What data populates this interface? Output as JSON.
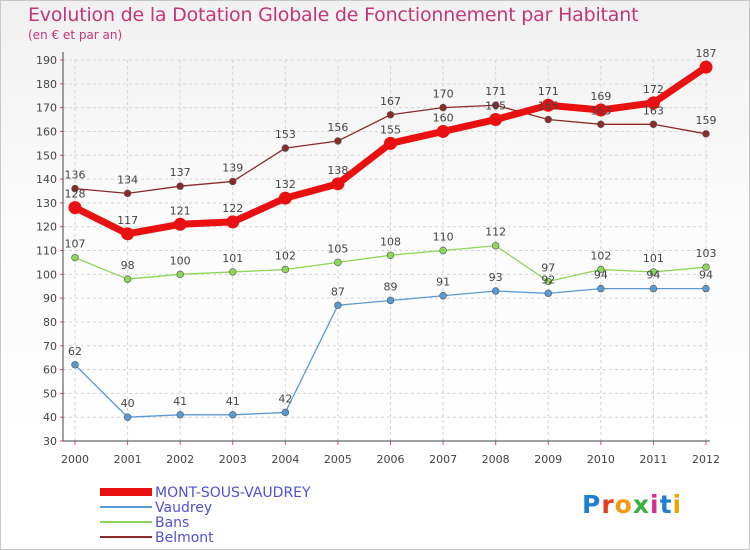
{
  "header": {
    "title": "Evolution de la Dotation Globale de Fonctionnement par Habitant",
    "subtitle": "(en € et par an)"
  },
  "logo": {
    "text": "Proxiti",
    "colors": [
      "#1e7fd6",
      "#e43c1c",
      "#f39a16",
      "#3cb043",
      "#d62e8c",
      "#1e7fd6",
      "#e4a800"
    ]
  },
  "chart_data": {
    "type": "line",
    "title": "Evolution de la Dotation Globale de Fonctionnement par Habitant",
    "subtitle": "(en € et par an)",
    "xlabel": "",
    "ylabel": "",
    "categories": [
      "2000",
      "2001",
      "2002",
      "2003",
      "2004",
      "2005",
      "2006",
      "2007",
      "2008",
      "2009",
      "2010",
      "2011",
      "2012"
    ],
    "ylim": [
      30,
      190
    ],
    "yticks": [
      30,
      40,
      50,
      60,
      70,
      80,
      90,
      100,
      110,
      120,
      130,
      140,
      150,
      160,
      170,
      180,
      190
    ],
    "grid": true,
    "legend_position": "bottom-left",
    "series": [
      {
        "name": "MONT-SOUS-VAUDREY",
        "color": "#e81010",
        "weight": "thick",
        "values": [
          128,
          117,
          121,
          122,
          132,
          138,
          155,
          160,
          165,
          171,
          169,
          172,
          187
        ],
        "labels": [
          "128",
          "117",
          "121",
          "122",
          "132",
          "138",
          "155",
          "160",
          "165",
          "171",
          "169",
          "172",
          "187"
        ]
      },
      {
        "name": "Vaudrey",
        "color": "#5a9ad2",
        "weight": "thin",
        "values": [
          62,
          40,
          41,
          41,
          42,
          87,
          89,
          91,
          93,
          92,
          94,
          94,
          94
        ],
        "labels": [
          "62",
          "40",
          "41",
          "41",
          "42",
          "87",
          "89",
          "91",
          "93",
          "92",
          "94",
          "94",
          "94"
        ]
      },
      {
        "name": "Bans",
        "color": "#8ed65a",
        "weight": "thin",
        "values": [
          107,
          98,
          100,
          101,
          102,
          105,
          108,
          110,
          112,
          97,
          102,
          101,
          103
        ],
        "labels": [
          "107",
          "98",
          "100",
          "101",
          "102",
          "105",
          "108",
          "110",
          "112",
          "97",
          "102",
          "101",
          "103"
        ]
      },
      {
        "name": "Belmont",
        "color": "#8a2a2a",
        "weight": "thin",
        "values": [
          136,
          134,
          137,
          139,
          153,
          156,
          167,
          170,
          171,
          165,
          163,
          163,
          159
        ],
        "labels": [
          "136",
          "134",
          "137",
          "139",
          "153",
          "156",
          "167",
          "170",
          "171",
          "165",
          "163",
          "163",
          "159"
        ]
      }
    ]
  }
}
